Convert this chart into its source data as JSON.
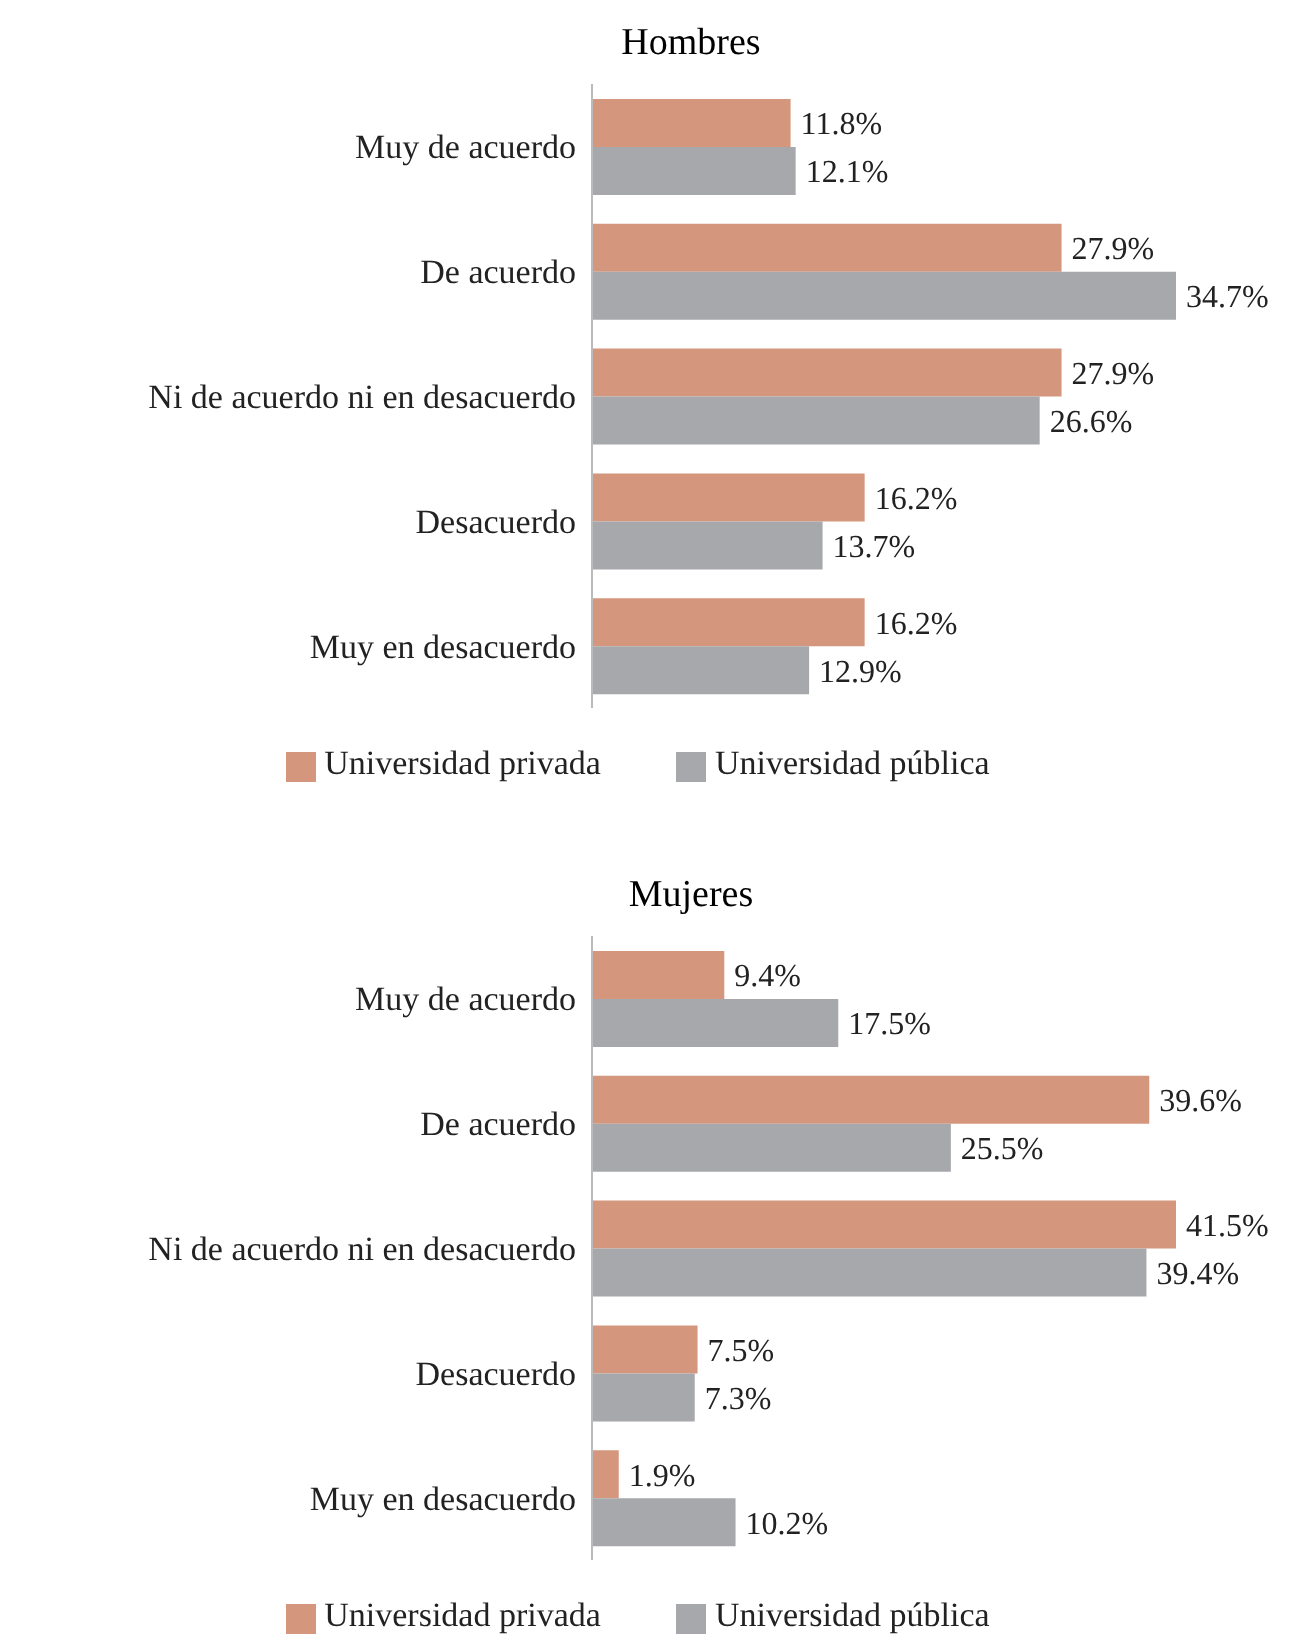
{
  "chart_data": [
    {
      "type": "bar",
      "orientation": "horizontal",
      "title": "Hombres",
      "categories": [
        "Muy de acuerdo",
        "De acuerdo",
        "Ni de acuerdo ni en desacuerdo",
        "Desacuerdo",
        "Muy en desacuerdo"
      ],
      "series": [
        {
          "name": "Universidad privada",
          "color": "#d4977d",
          "values": [
            11.8,
            27.9,
            27.9,
            16.2,
            16.2
          ],
          "value_labels": [
            "11.8%",
            "27.9%",
            "27.9%",
            "16.2%",
            "16.2%"
          ]
        },
        {
          "name": "Universidad pública",
          "color": "#a7a8ac",
          "values": [
            12.1,
            34.7,
            26.6,
            13.7,
            12.9
          ],
          "value_labels": [
            "12.1%",
            "34.7%",
            "26.6%",
            "13.7%",
            "12.9%"
          ]
        }
      ],
      "legend": "bottom",
      "grid": false
    },
    {
      "type": "bar",
      "orientation": "horizontal",
      "title": "Mujeres",
      "categories": [
        "Muy de acuerdo",
        "De acuerdo",
        "Ni de acuerdo ni en desacuerdo",
        "Desacuerdo",
        "Muy en desacuerdo"
      ],
      "series": [
        {
          "name": "Universidad privada",
          "color": "#d4977d",
          "values": [
            9.4,
            39.6,
            41.5,
            7.5,
            1.9
          ],
          "value_labels": [
            "9.4%",
            "39.6%",
            "41.5%",
            "7.5%",
            "1.9%"
          ]
        },
        {
          "name": "Universidad pública",
          "color": "#a7a8ac",
          "values": [
            17.5,
            25.5,
            39.4,
            7.3,
            10.2
          ],
          "value_labels": [
            "17.5%",
            "25.5%",
            "39.4%",
            "7.3%",
            "10.2%"
          ]
        }
      ],
      "legend": "bottom",
      "grid": false
    }
  ]
}
